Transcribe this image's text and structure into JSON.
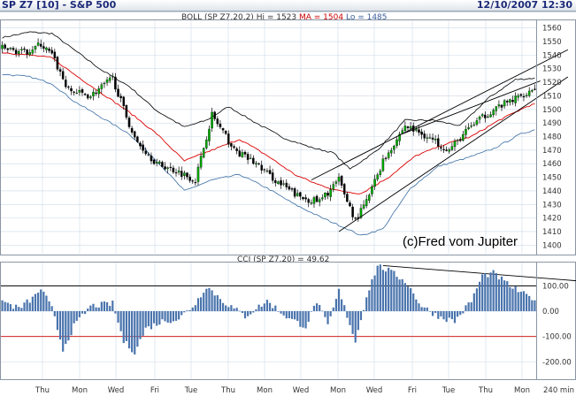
{
  "header": {
    "symbol": "SP Z7 [10] - S&P 500",
    "datetime": "12/10/2007 12:30"
  },
  "price_panel": {
    "label_prefix": "BOLL (SP Z7,20,2)",
    "hi_label": "Hi = 1523",
    "ma_label": "MA = 1504",
    "lo_label": "Lo = 1485",
    "watermark": "(c)Fred vom Jupiter"
  },
  "cci_panel": {
    "label": "CCI (SP Z7,20) = 49.62"
  },
  "colors": {
    "candle_up": "#00aa00",
    "candle_down": "#000000",
    "ma_line": "#dd0000",
    "upper_band": "#000000",
    "lower_band": "#3a6ea5",
    "cci_bars": "#4a74ad",
    "cci_ref_100": "#000000",
    "cci_ref_minus100": "#cc0000",
    "grid": "#cdd9e6"
  },
  "chart_data": [
    {
      "type": "candlestick",
      "title": "BOLL (SP Z7,20,2)",
      "yticks": [
        1400,
        1410,
        1420,
        1430,
        1440,
        1450,
        1460,
        1470,
        1480,
        1490,
        1500,
        1510,
        1520,
        1530,
        1540,
        1550,
        1560
      ],
      "ylim": [
        1395,
        1565
      ],
      "xticks": [
        "Thu",
        "Mon",
        "Wed",
        "Fri",
        "Tue",
        "Thu",
        "Mon",
        "Wed",
        "Mon",
        "Wed",
        "Fri",
        "Tue",
        "Thu",
        "Mon"
      ],
      "x_unit_label": "240 min",
      "close_anchors": [
        [
          0,
          1545
        ],
        [
          8,
          1542
        ],
        [
          14,
          1548
        ],
        [
          18,
          1540
        ],
        [
          24,
          1514
        ],
        [
          32,
          1510
        ],
        [
          40,
          1523
        ],
        [
          48,
          1478
        ],
        [
          56,
          1460
        ],
        [
          64,
          1454
        ],
        [
          70,
          1448
        ],
        [
          76,
          1496
        ],
        [
          84,
          1470
        ],
        [
          92,
          1460
        ],
        [
          100,
          1446
        ],
        [
          108,
          1435
        ],
        [
          115,
          1432
        ],
        [
          122,
          1448
        ],
        [
          128,
          1418
        ],
        [
          132,
          1432
        ],
        [
          138,
          1462
        ],
        [
          146,
          1488
        ],
        [
          154,
          1480
        ],
        [
          162,
          1470
        ],
        [
          170,
          1488
        ],
        [
          178,
          1500
        ],
        [
          186,
          1508
        ],
        [
          193,
          1516
        ]
      ],
      "upper_band_anchors": [
        [
          0,
          1553
        ],
        [
          10,
          1557
        ],
        [
          18,
          1556
        ],
        [
          26,
          1544
        ],
        [
          36,
          1529
        ],
        [
          46,
          1517
        ],
        [
          56,
          1499
        ],
        [
          66,
          1487
        ],
        [
          74,
          1492
        ],
        [
          82,
          1502
        ],
        [
          92,
          1490
        ],
        [
          102,
          1479
        ],
        [
          112,
          1472
        ],
        [
          120,
          1468
        ],
        [
          126,
          1456
        ],
        [
          136,
          1470
        ],
        [
          146,
          1492
        ],
        [
          156,
          1492
        ],
        [
          166,
          1488
        ],
        [
          176,
          1508
        ],
        [
          186,
          1522
        ],
        [
          193,
          1523
        ]
      ],
      "ma_anchors": [
        [
          0,
          1542
        ],
        [
          10,
          1540
        ],
        [
          18,
          1538
        ],
        [
          26,
          1526
        ],
        [
          36,
          1512
        ],
        [
          46,
          1498
        ],
        [
          56,
          1482
        ],
        [
          66,
          1462
        ],
        [
          76,
          1470
        ],
        [
          86,
          1478
        ],
        [
          96,
          1466
        ],
        [
          106,
          1452
        ],
        [
          114,
          1445
        ],
        [
          122,
          1440
        ],
        [
          130,
          1438
        ],
        [
          140,
          1450
        ],
        [
          150,
          1466
        ],
        [
          160,
          1474
        ],
        [
          170,
          1480
        ],
        [
          180,
          1492
        ],
        [
          190,
          1502
        ],
        [
          193,
          1504
        ]
      ],
      "lower_band_anchors": [
        [
          0,
          1526
        ],
        [
          10,
          1524
        ],
        [
          18,
          1519
        ],
        [
          26,
          1506
        ],
        [
          36,
          1494
        ],
        [
          46,
          1482
        ],
        [
          56,
          1462
        ],
        [
          66,
          1440
        ],
        [
          76,
          1448
        ],
        [
          86,
          1452
        ],
        [
          96,
          1442
        ],
        [
          106,
          1430
        ],
        [
          116,
          1420
        ],
        [
          124,
          1413
        ],
        [
          130,
          1407
        ],
        [
          138,
          1412
        ],
        [
          148,
          1442
        ],
        [
          158,
          1458
        ],
        [
          168,
          1464
        ],
        [
          178,
          1471
        ],
        [
          188,
          1482
        ],
        [
          193,
          1485
        ]
      ],
      "trendlines": [
        {
          "from": [
            112,
            1448
          ],
          "to": [
            205,
            1544
          ]
        },
        {
          "from": [
            122,
            1410
          ],
          "to": [
            205,
            1524
          ]
        },
        {
          "from": [
            145,
            1482
          ],
          "to": [
            195,
            1521
          ]
        }
      ]
    },
    {
      "type": "bar",
      "title": "CCI (SP Z7,20)",
      "yticks": [
        100,
        0,
        -100,
        -200
      ],
      "ylim": [
        -265,
        185
      ],
      "reference_lines": [
        100,
        -100
      ],
      "last_value": 49.62,
      "anchors": [
        [
          0,
          40
        ],
        [
          6,
          10
        ],
        [
          12,
          60
        ],
        [
          14,
          90
        ],
        [
          18,
          10
        ],
        [
          22,
          -150
        ],
        [
          26,
          -60
        ],
        [
          32,
          20
        ],
        [
          40,
          30
        ],
        [
          44,
          -120
        ],
        [
          48,
          -160
        ],
        [
          52,
          -70
        ],
        [
          58,
          -40
        ],
        [
          64,
          -30
        ],
        [
          70,
          30
        ],
        [
          74,
          100
        ],
        [
          80,
          40
        ],
        [
          88,
          -20
        ],
        [
          96,
          40
        ],
        [
          104,
          -30
        ],
        [
          110,
          -60
        ],
        [
          114,
          40
        ],
        [
          118,
          -60
        ],
        [
          122,
          80
        ],
        [
          126,
          -50
        ],
        [
          128,
          -120
        ],
        [
          132,
          60
        ],
        [
          136,
          180
        ],
        [
          140,
          160
        ],
        [
          146,
          120
        ],
        [
          152,
          20
        ],
        [
          158,
          -20
        ],
        [
          164,
          -40
        ],
        [
          170,
          40
        ],
        [
          174,
          140
        ],
        [
          178,
          150
        ],
        [
          184,
          100
        ],
        [
          190,
          60
        ],
        [
          193,
          50
        ]
      ],
      "trendline": {
        "from": [
          138,
          180
        ],
        "to": [
          208,
          120
        ]
      }
    }
  ]
}
